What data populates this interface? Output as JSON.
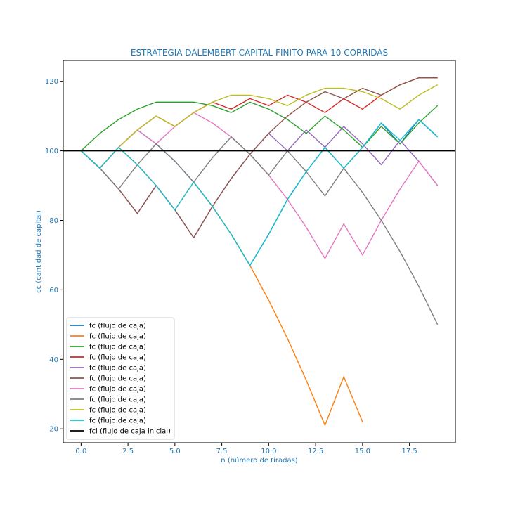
{
  "chart_data": {
    "type": "line",
    "title": "ESTRATEGIA DALEMBERT CAPITAL FINITO PARA 10 CORRIDAS",
    "xlabel": "n (número de tiradas)",
    "ylabel": "cc (cantidad de capital)",
    "xlim": [
      -0.95,
      19.95
    ],
    "ylim": [
      16,
      126
    ],
    "xticks": [
      0,
      2.5,
      5,
      7.5,
      10,
      12.5,
      15,
      17.5
    ],
    "xtick_labels": [
      "0.0",
      "2.5",
      "5.0",
      "7.5",
      "10.0",
      "12.5",
      "15.0",
      "17.5"
    ],
    "yticks": [
      20,
      40,
      60,
      80,
      100,
      120
    ],
    "ytick_labels": [
      "20",
      "40",
      "60",
      "80",
      "100",
      "120"
    ],
    "grid": false,
    "legend_position": "lower-left",
    "axis_color": "#1f77b4",
    "series": [
      {
        "name": "fc (flujo de caja)",
        "color": "#1f77b4",
        "x": [
          0,
          1,
          2,
          3,
          4,
          5,
          6,
          7,
          8,
          9,
          10,
          11,
          12,
          13,
          14,
          15,
          16,
          17,
          18,
          19
        ],
        "y": [
          100,
          95,
          101,
          106,
          102,
          97,
          91,
          84,
          76,
          67,
          76,
          86,
          94,
          101,
          95,
          101,
          108,
          102,
          109,
          104
        ]
      },
      {
        "name": "fc (flujo de caja)",
        "color": "#ff7f0e",
        "x": [
          0,
          1,
          2,
          3,
          4,
          5,
          6,
          7,
          8,
          9,
          10,
          11,
          12,
          13,
          14,
          15
        ],
        "y": [
          100,
          95,
          101,
          96,
          90,
          83,
          91,
          84,
          76,
          67,
          57,
          46,
          34,
          21,
          35,
          22
        ]
      },
      {
        "name": "fc (flujo de caja)",
        "color": "#2ca02c",
        "x": [
          0,
          1,
          2,
          3,
          4,
          5,
          6,
          7,
          8,
          9,
          10,
          11,
          12,
          13,
          14,
          15,
          16,
          17,
          18,
          19
        ],
        "y": [
          100,
          105,
          109,
          112,
          114,
          114,
          114,
          113,
          111,
          114,
          112,
          109,
          105,
          110,
          106,
          101,
          107,
          102,
          108,
          113
        ]
      },
      {
        "name": "fc (flujo de caja)",
        "color": "#d62728",
        "x": [
          0,
          1,
          2,
          3,
          4,
          5,
          6,
          7,
          8,
          9,
          10,
          11,
          12,
          13,
          14,
          15,
          16,
          17,
          18,
          19
        ],
        "y": [
          100,
          95,
          101,
          106,
          110,
          107,
          111,
          114,
          112,
          115,
          113,
          116,
          114,
          111,
          115,
          112,
          116,
          119,
          121,
          121
        ]
      },
      {
        "name": "fc (flujo de caja)",
        "color": "#9467bd",
        "x": [
          0,
          1,
          2,
          3,
          4,
          5,
          6,
          7,
          8,
          9,
          10,
          11,
          12,
          13,
          14,
          15,
          16,
          17,
          18,
          19
        ],
        "y": [
          100,
          95,
          89,
          82,
          90,
          83,
          75,
          84,
          92,
          99,
          105,
          100,
          106,
          101,
          107,
          102,
          96,
          103,
          97,
          90
        ]
      },
      {
        "name": "fc (flujo de caja)",
        "color": "#8c564b",
        "x": [
          0,
          1,
          2,
          3,
          4,
          5,
          6,
          7,
          8,
          9,
          10,
          11,
          12,
          13,
          14,
          15,
          16,
          17,
          18,
          19
        ],
        "y": [
          100,
          95,
          89,
          82,
          90,
          83,
          75,
          84,
          92,
          99,
          105,
          110,
          114,
          117,
          115,
          118,
          116,
          119,
          121,
          121
        ]
      },
      {
        "name": "fc (flujo de caja)",
        "color": "#e377c2",
        "x": [
          0,
          1,
          2,
          3,
          4,
          5,
          6,
          7,
          8,
          9,
          10,
          11,
          12,
          13,
          14,
          15,
          16,
          17,
          18,
          19
        ],
        "y": [
          100,
          95,
          101,
          106,
          102,
          107,
          111,
          108,
          104,
          99,
          93,
          86,
          78,
          69,
          79,
          70,
          80,
          89,
          97,
          90
        ]
      },
      {
        "name": "fc (flujo de caja)",
        "color": "#7f7f7f",
        "x": [
          0,
          1,
          2,
          3,
          4,
          5,
          6,
          7,
          8,
          9,
          10,
          11,
          12,
          13,
          14,
          15,
          16,
          17,
          18,
          19
        ],
        "y": [
          100,
          95,
          89,
          96,
          102,
          97,
          91,
          98,
          104,
          99,
          93,
          100,
          94,
          87,
          95,
          88,
          80,
          71,
          61,
          50
        ]
      },
      {
        "name": "fc (flujo de caja)",
        "color": "#bcbd22",
        "x": [
          0,
          1,
          2,
          3,
          4,
          5,
          6,
          7,
          8,
          9,
          10,
          11,
          12,
          13,
          14,
          15,
          16,
          17,
          18,
          19
        ],
        "y": [
          100,
          95,
          101,
          106,
          110,
          107,
          111,
          114,
          116,
          116,
          115,
          113,
          116,
          118,
          118,
          117,
          115,
          112,
          116,
          119
        ]
      },
      {
        "name": "fc (flujo de caja)",
        "color": "#17becf",
        "x": [
          0,
          1,
          2,
          3,
          4,
          5,
          6,
          7,
          8,
          9,
          10,
          11,
          12,
          13,
          14,
          15,
          16,
          17,
          18,
          19
        ],
        "y": [
          100,
          95,
          101,
          96,
          90,
          83,
          91,
          84,
          76,
          67,
          76,
          86,
          94,
          101,
          95,
          101,
          108,
          103,
          109,
          104
        ]
      },
      {
        "name": "fci (flujo de caja inicial)",
        "color": "#000000",
        "hline": 100
      }
    ]
  }
}
